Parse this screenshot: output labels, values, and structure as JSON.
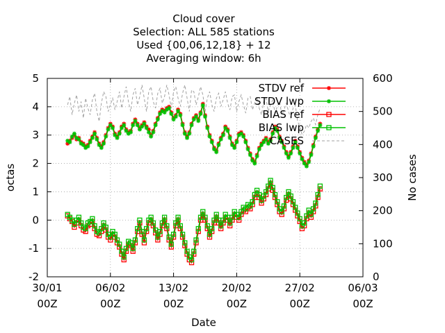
{
  "chart_data": {
    "type": "line",
    "title_lines": [
      "Cloud cover",
      "Selection: ALL    585 stations",
      "Used {00,06,12,18} + 12",
      "Averaging window:  6h"
    ],
    "xlabel": "Date",
    "ylabel": "octas",
    "y2label": "No cases",
    "x_ticks": [
      {
        "d": "30/01",
        "t": "00Z",
        "day": 0
      },
      {
        "d": "06/02",
        "t": "00Z",
        "day": 7
      },
      {
        "d": "13/02",
        "t": "00Z",
        "day": 14
      },
      {
        "d": "20/02",
        "t": "00Z",
        "day": 21
      },
      {
        "d": "27/02",
        "t": "00Z",
        "day": 28
      },
      {
        "d": "06/03",
        "t": "00Z",
        "day": 35
      }
    ],
    "xlim_days": [
      0,
      35
    ],
    "ylim": [
      -2,
      5
    ],
    "y_ticks": [
      -2,
      -1,
      0,
      1,
      2,
      3,
      4,
      5
    ],
    "y2lim": [
      0,
      600
    ],
    "y2_ticks": [
      0,
      100,
      200,
      300,
      400,
      500,
      600
    ],
    "grid": true,
    "legend_position": "top-right",
    "step_hours": 6,
    "series": [
      {
        "name": "STDV ref",
        "color": "#ff0000",
        "marker": "star",
        "axis": "y1",
        "start_day": 2.25,
        "values": [
          2.7,
          2.8,
          2.9,
          3.0,
          2.85,
          2.9,
          2.75,
          2.7,
          2.6,
          2.65,
          2.8,
          2.95,
          3.1,
          2.9,
          2.7,
          2.6,
          2.75,
          3.0,
          3.25,
          3.4,
          3.3,
          3.05,
          2.95,
          3.1,
          3.3,
          3.4,
          3.2,
          3.1,
          3.15,
          3.4,
          3.55,
          3.4,
          3.25,
          3.35,
          3.45,
          3.3,
          3.2,
          3.0,
          3.15,
          3.4,
          3.6,
          3.8,
          3.9,
          3.85,
          3.95,
          4.0,
          3.8,
          3.6,
          3.7,
          3.9,
          3.75,
          3.4,
          3.1,
          2.95,
          3.1,
          3.4,
          3.6,
          3.7,
          3.55,
          3.8,
          4.1,
          3.7,
          3.3,
          3.0,
          2.8,
          2.55,
          2.45,
          2.7,
          2.9,
          3.05,
          3.3,
          3.2,
          2.95,
          2.7,
          2.6,
          2.8,
          3.05,
          3.1,
          3.0,
          2.8,
          2.55,
          2.35,
          2.15,
          2.05,
          2.3,
          2.55,
          2.7,
          2.8,
          2.9,
          2.75,
          2.85,
          3.1,
          3.3,
          3.2,
          2.95,
          2.8,
          2.6,
          2.4,
          2.25,
          2.4,
          2.6,
          2.8,
          2.6,
          2.4,
          2.2,
          2.05,
          1.95,
          2.1,
          2.35,
          2.65,
          2.95,
          3.2,
          3.4
        ]
      },
      {
        "name": "STDV lwp",
        "color": "#00c000",
        "marker": "star",
        "axis": "y1",
        "start_day": 2.25,
        "values": [
          2.8,
          2.75,
          2.95,
          3.05,
          2.9,
          2.85,
          2.7,
          2.65,
          2.55,
          2.6,
          2.75,
          2.9,
          3.05,
          2.85,
          2.65,
          2.55,
          2.7,
          2.95,
          3.2,
          3.35,
          3.25,
          3.0,
          2.9,
          3.05,
          3.25,
          3.35,
          3.15,
          3.05,
          3.1,
          3.35,
          3.5,
          3.35,
          3.2,
          3.3,
          3.4,
          3.25,
          3.1,
          2.95,
          3.1,
          3.35,
          3.55,
          3.75,
          3.85,
          3.8,
          3.9,
          3.95,
          3.75,
          3.55,
          3.65,
          3.85,
          3.7,
          3.35,
          3.05,
          2.9,
          3.05,
          3.35,
          3.55,
          3.65,
          3.5,
          3.75,
          4.05,
          3.65,
          3.25,
          2.95,
          2.75,
          2.5,
          2.4,
          2.65,
          2.85,
          3.0,
          3.25,
          3.15,
          2.9,
          2.65,
          2.55,
          2.75,
          3.0,
          3.05,
          2.95,
          2.75,
          2.5,
          2.3,
          2.1,
          2.0,
          2.25,
          2.5,
          2.65,
          2.75,
          2.85,
          2.7,
          2.8,
          3.05,
          3.25,
          3.15,
          2.9,
          2.75,
          2.55,
          2.35,
          2.2,
          2.35,
          2.55,
          2.75,
          2.55,
          2.35,
          2.15,
          2.0,
          1.9,
          2.05,
          2.3,
          2.6,
          2.9,
          3.15,
          3.35
        ]
      },
      {
        "name": "BIAS ref",
        "color": "#ff0000",
        "marker": "square",
        "axis": "y1",
        "start_day": 2.25,
        "values": [
          0.15,
          0.05,
          -0.05,
          -0.25,
          -0.1,
          0.0,
          -0.2,
          -0.35,
          -0.4,
          -0.2,
          -0.15,
          -0.05,
          -0.3,
          -0.5,
          -0.55,
          -0.4,
          -0.2,
          -0.35,
          -0.6,
          -0.7,
          -0.5,
          -0.6,
          -0.8,
          -0.95,
          -1.2,
          -1.4,
          -1.1,
          -0.85,
          -0.9,
          -1.1,
          -0.8,
          -0.4,
          -0.1,
          -0.5,
          -0.8,
          -0.4,
          -0.1,
          0.0,
          -0.2,
          -0.45,
          -0.7,
          -0.5,
          -0.2,
          0.0,
          -0.3,
          -0.7,
          -0.95,
          -0.6,
          -0.2,
          0.0,
          -0.3,
          -0.6,
          -0.9,
          -1.2,
          -1.4,
          -1.5,
          -1.2,
          -0.8,
          -0.4,
          0.0,
          0.2,
          0.0,
          -0.3,
          -0.6,
          -0.4,
          -0.1,
          0.1,
          -0.1,
          -0.3,
          -0.1,
          0.1,
          0.0,
          -0.2,
          0.0,
          0.2,
          0.1,
          0.0,
          0.2,
          0.35,
          0.3,
          0.45,
          0.4,
          0.55,
          0.8,
          0.95,
          0.8,
          0.6,
          0.75,
          0.9,
          1.1,
          1.3,
          1.05,
          0.8,
          0.55,
          0.3,
          0.2,
          0.4,
          0.7,
          0.9,
          0.75,
          0.55,
          0.35,
          0.15,
          -0.05,
          -0.3,
          -0.2,
          0.05,
          0.25,
          0.1,
          0.3,
          0.5,
          0.8,
          1.1
        ]
      },
      {
        "name": "BIAS lwp",
        "color": "#00c000",
        "marker": "square",
        "axis": "y1",
        "start_day": 2.25,
        "values": [
          0.2,
          0.1,
          0.0,
          -0.15,
          0.0,
          0.1,
          -0.1,
          -0.25,
          -0.3,
          -0.1,
          -0.05,
          0.05,
          -0.2,
          -0.4,
          -0.45,
          -0.3,
          -0.1,
          -0.25,
          -0.5,
          -0.6,
          -0.4,
          -0.5,
          -0.7,
          -0.85,
          -1.1,
          -1.3,
          -1.0,
          -0.75,
          -0.8,
          -1.0,
          -0.7,
          -0.3,
          0.0,
          -0.4,
          -0.7,
          -0.3,
          0.0,
          0.1,
          -0.1,
          -0.35,
          -0.6,
          -0.4,
          -0.1,
          0.1,
          -0.2,
          -0.6,
          -0.85,
          -0.5,
          -0.1,
          0.1,
          -0.2,
          -0.5,
          -0.8,
          -1.1,
          -1.3,
          -1.4,
          -1.1,
          -0.7,
          -0.3,
          0.1,
          0.3,
          0.1,
          -0.2,
          -0.5,
          -0.3,
          0.0,
          0.2,
          0.0,
          -0.2,
          0.0,
          0.2,
          0.1,
          -0.1,
          0.1,
          0.3,
          0.2,
          0.1,
          0.3,
          0.45,
          0.4,
          0.55,
          0.5,
          0.65,
          0.9,
          1.05,
          0.9,
          0.7,
          0.85,
          1.0,
          1.2,
          1.4,
          1.15,
          0.9,
          0.65,
          0.4,
          0.3,
          0.5,
          0.8,
          1.0,
          0.85,
          0.65,
          0.45,
          0.25,
          0.05,
          -0.2,
          -0.1,
          0.15,
          0.35,
          0.2,
          0.4,
          0.6,
          0.9,
          1.2
        ]
      },
      {
        "name": "CASES",
        "color": "#a0a0a0",
        "marker": "none",
        "dash": "4,3",
        "axis": "y2",
        "start_day": 2.25,
        "values": [
          520,
          545,
          490,
          525,
          550,
          500,
          530,
          480,
          540,
          510,
          490,
          535,
          555,
          500,
          470,
          525,
          560,
          545,
          500,
          520,
          540,
          505,
          530,
          560,
          510,
          545,
          575,
          530,
          500,
          550,
          570,
          520,
          545,
          580,
          540,
          500,
          560,
          575,
          530,
          510,
          555,
          570,
          525,
          545,
          580,
          550,
          510,
          560,
          575,
          540,
          515,
          555,
          580,
          540,
          500,
          565,
          560,
          520,
          545,
          575,
          550,
          500,
          540,
          560,
          520,
          500,
          540,
          555,
          515,
          535,
          560,
          525,
          505,
          545,
          550,
          500,
          530,
          550,
          520,
          495,
          540,
          545,
          505,
          525,
          545,
          510,
          490,
          530,
          540,
          500,
          520,
          535,
          495,
          515,
          530,
          490,
          505,
          525,
          500,
          480,
          510,
          520,
          470,
          455,
          430,
          440,
          460,
          450,
          470,
          480,
          460,
          490,
          510
        ]
      }
    ]
  }
}
